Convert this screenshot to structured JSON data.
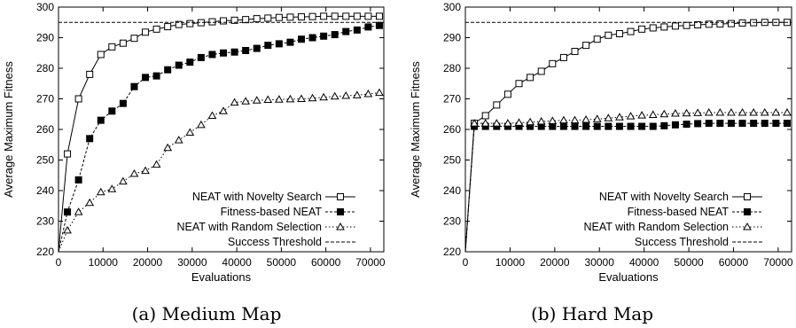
{
  "charts": [
    {
      "caption": "(a) Medium Map",
      "xlabel": "Evaluations",
      "ylabel": "Average Maximum Fitness",
      "xlim": [
        0,
        73000
      ],
      "ylim": [
        220,
        300
      ],
      "xticks": [
        0,
        10000,
        20000,
        30000,
        40000,
        50000,
        60000,
        70000
      ],
      "yticks": [
        220,
        230,
        240,
        250,
        260,
        270,
        280,
        290,
        300
      ],
      "legend_position": "bottom-right"
    },
    {
      "caption": "(b) Hard Map",
      "xlabel": "Evaluations",
      "ylabel": "Average Maximum Fitness",
      "xlim": [
        0,
        73000
      ],
      "ylim": [
        220,
        300
      ],
      "xticks": [
        0,
        10000,
        20000,
        30000,
        40000,
        50000,
        60000,
        70000
      ],
      "yticks": [
        220,
        230,
        240,
        250,
        260,
        270,
        280,
        290,
        300
      ],
      "legend_position": "center-right"
    }
  ],
  "chart_data": [
    {
      "type": "line",
      "title": "(a) Medium Map",
      "xlabel": "Evaluations",
      "ylabel": "Average Maximum Fitness",
      "xlim": [
        0,
        73000
      ],
      "ylim": [
        220,
        300
      ],
      "grid": false,
      "legend_position": "bottom-right",
      "series": [
        {
          "name": "NEAT with Novelty Search",
          "marker": "open-square",
          "x": [
            0,
            2000,
            4500,
            7000,
            9500,
            12000,
            14500,
            17000,
            19500,
            22000,
            24500,
            27000,
            29500,
            32000,
            34500,
            37000,
            39500,
            42000,
            44500,
            47000,
            49500,
            52000,
            54500,
            57000,
            59500,
            62000,
            64500,
            67000,
            69500,
            72000
          ],
          "y": [
            220,
            252,
            270,
            278,
            284.5,
            287,
            288.2,
            289.8,
            291.8,
            292.8,
            293.6,
            294.3,
            294.6,
            294.9,
            295.2,
            295.5,
            295.7,
            295.9,
            296.2,
            296.4,
            296.6,
            296.7,
            296.8,
            296.9,
            297,
            297,
            297,
            297,
            297,
            297
          ]
        },
        {
          "name": "Fitness-based NEAT",
          "marker": "filled-square",
          "x": [
            0,
            2000,
            4500,
            7000,
            9500,
            12000,
            14500,
            17000,
            19500,
            22000,
            24500,
            27000,
            29500,
            32000,
            34500,
            37000,
            39500,
            42000,
            44500,
            47000,
            49500,
            52000,
            54500,
            57000,
            59500,
            62000,
            64500,
            67000,
            69500,
            72000
          ],
          "y": [
            220,
            233,
            243.5,
            257,
            263,
            266,
            268.5,
            274,
            277,
            277.5,
            279.5,
            281,
            282,
            283.5,
            284.5,
            285,
            285.3,
            285.8,
            286.5,
            287.5,
            288,
            288.5,
            289.5,
            290,
            290.5,
            291,
            292,
            292.5,
            293.5,
            294
          ]
        },
        {
          "name": "NEAT with Random Selection",
          "marker": "open-triangle",
          "x": [
            0,
            2000,
            4500,
            7000,
            9500,
            12000,
            14500,
            17000,
            19500,
            22000,
            24500,
            27000,
            29500,
            32000,
            34500,
            37000,
            39500,
            42000,
            44500,
            47000,
            49500,
            52000,
            54500,
            57000,
            59500,
            62000,
            64500,
            67000,
            69500,
            72000
          ],
          "y": [
            220,
            227,
            233,
            236,
            239.5,
            240.5,
            243,
            245.5,
            246.5,
            248.5,
            254,
            256.5,
            259,
            261.5,
            264.5,
            266,
            268.8,
            269.2,
            269.5,
            269.7,
            269.8,
            269.9,
            270,
            270.2,
            270.5,
            270.8,
            271,
            271.2,
            271.6,
            272
          ]
        },
        {
          "name": "Success Threshold",
          "marker": "none",
          "x": [
            0,
            73000
          ],
          "y": [
            295,
            295
          ]
        }
      ]
    },
    {
      "type": "line",
      "title": "(b) Hard Map",
      "xlabel": "Evaluations",
      "ylabel": "Average Maximum Fitness",
      "xlim": [
        0,
        73000
      ],
      "ylim": [
        220,
        300
      ],
      "grid": false,
      "legend_position": "center-right",
      "series": [
        {
          "name": "NEAT with Novelty Search",
          "marker": "open-square",
          "x": [
            0,
            2000,
            4500,
            7000,
            9500,
            12000,
            14500,
            17000,
            19500,
            22000,
            24500,
            27000,
            29500,
            32000,
            34500,
            37000,
            39500,
            42000,
            44500,
            47000,
            49500,
            52000,
            54500,
            57000,
            59500,
            62000,
            64500,
            67000,
            69500,
            72000
          ],
          "y": [
            220,
            262,
            264.5,
            268,
            271.5,
            275,
            277,
            279,
            281.5,
            283.5,
            285.5,
            287.5,
            289.5,
            290.8,
            291.3,
            292,
            292.8,
            293.2,
            293.5,
            293.8,
            294,
            294.2,
            294.4,
            294.5,
            294.6,
            294.8,
            294.9,
            295,
            295,
            295
          ]
        },
        {
          "name": "Fitness-based NEAT",
          "marker": "filled-square",
          "x": [
            0,
            2000,
            4500,
            7000,
            9500,
            12000,
            14500,
            17000,
            19500,
            22000,
            24500,
            27000,
            29500,
            32000,
            34500,
            37000,
            39500,
            42000,
            44500,
            47000,
            49500,
            52000,
            54500,
            57000,
            59500,
            62000,
            64500,
            67000,
            69500,
            72000
          ],
          "y": [
            220,
            261,
            261,
            261,
            261,
            261,
            261,
            261,
            261,
            261,
            261,
            261,
            261,
            261,
            261,
            261,
            261,
            261,
            261.2,
            261.5,
            261.7,
            261.9,
            262,
            262,
            262,
            262,
            262,
            262,
            262,
            262
          ]
        },
        {
          "name": "NEAT with Random Selection",
          "marker": "open-triangle",
          "x": [
            0,
            2000,
            4500,
            7000,
            9500,
            12000,
            14500,
            17000,
            19500,
            22000,
            24500,
            27000,
            29500,
            32000,
            34500,
            37000,
            39500,
            42000,
            44500,
            47000,
            49500,
            52000,
            54500,
            57000,
            59500,
            62000,
            64500,
            67000,
            69500,
            72000
          ],
          "y": [
            220,
            262,
            262,
            262,
            262,
            262.2,
            262.4,
            262.6,
            262.8,
            263,
            263,
            263.2,
            263.4,
            263.7,
            264,
            264.3,
            264.6,
            264.8,
            265,
            265.2,
            265.3,
            265.4,
            265.5,
            265.5,
            265.5,
            265.5,
            265.5,
            265.5,
            265.5,
            265.5
          ]
        },
        {
          "name": "Success Threshold",
          "marker": "none",
          "x": [
            0,
            73000
          ],
          "y": [
            295,
            295
          ]
        }
      ]
    }
  ]
}
